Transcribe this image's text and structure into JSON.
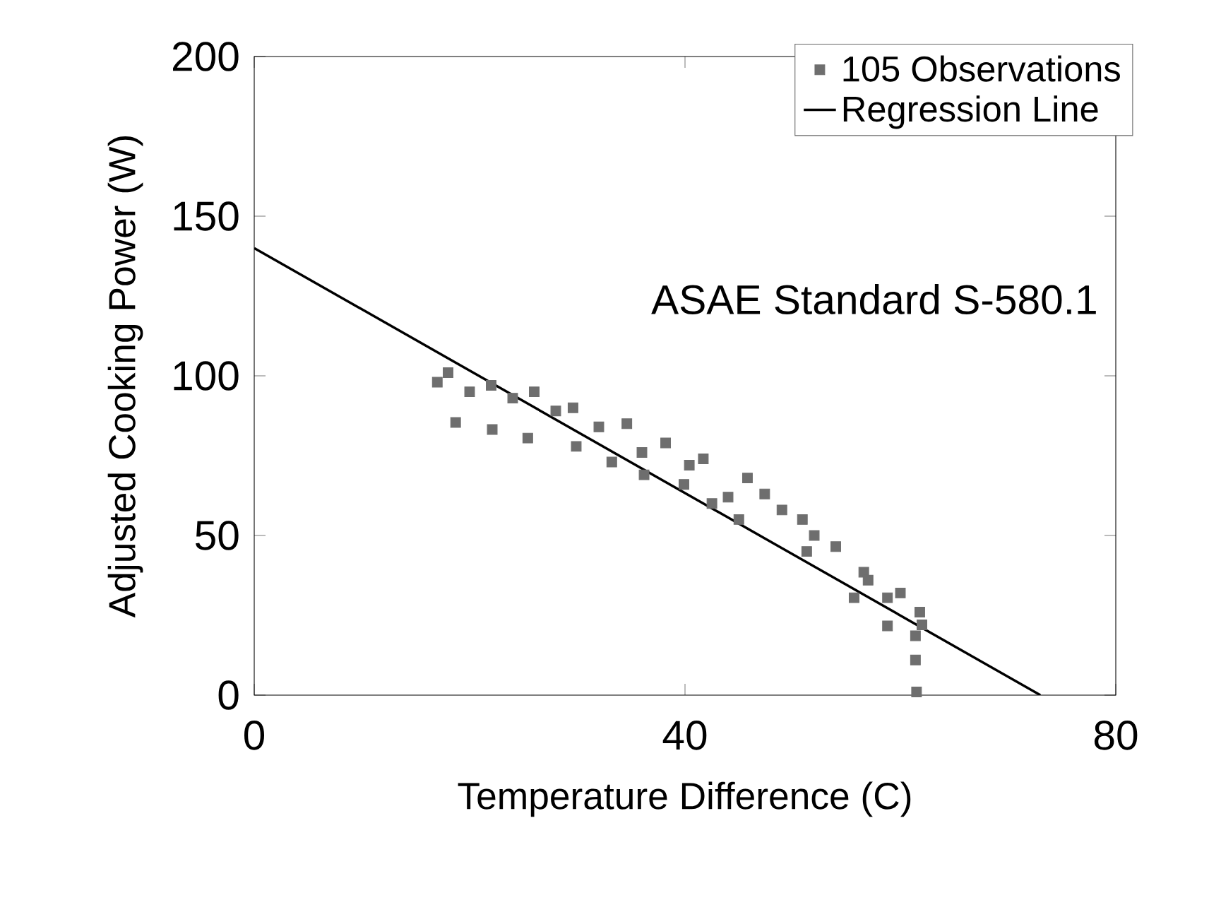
{
  "chart_data": {
    "type": "scatter",
    "xlabel": "Temperature Difference (C)",
    "ylabel": "Adjusted Cooking Power (W)",
    "xlim": [
      0,
      80
    ],
    "xticks": [
      0,
      40,
      80
    ],
    "ylim": [
      0,
      200
    ],
    "yticks": [
      0,
      50,
      100,
      150,
      200
    ],
    "legend": "top right",
    "grid": false,
    "annotations": [
      "ASAE Standard S-580.1"
    ],
    "series": [
      {
        "name": "105 Observations",
        "marker": "square",
        "color": "#6e6e6e",
        "x": [
          18,
          22,
          26,
          29.6,
          34.6,
          38.2,
          40.4,
          41.7,
          45.8,
          47.4,
          50.9,
          54,
          56.6,
          58.8,
          61.8,
          61.4,
          61.4,
          61.5,
          18.7,
          22.1,
          25.4,
          29.9,
          33.2,
          36.2,
          39.9,
          42.5,
          45,
          51.3,
          55.7,
          58.8,
          17,
          20,
          24,
          28,
          32,
          36,
          44,
          49,
          52,
          57,
          60,
          62
        ],
        "values": [
          101,
          97,
          95,
          90,
          85,
          79,
          72,
          74,
          68,
          63,
          55,
          46.5,
          38.5,
          30.5,
          26,
          18.6,
          11,
          1,
          85.4,
          83.2,
          80.5,
          77.9,
          73,
          69,
          66,
          60,
          55,
          45,
          30.5,
          21.7,
          98,
          95,
          93,
          89,
          84,
          76,
          62,
          58,
          50,
          36,
          32,
          22
        ]
      },
      {
        "name": "Regression Line",
        "type": "line",
        "color": "#000000",
        "x": [
          0,
          73
        ],
        "values": [
          140,
          0
        ]
      }
    ]
  }
}
